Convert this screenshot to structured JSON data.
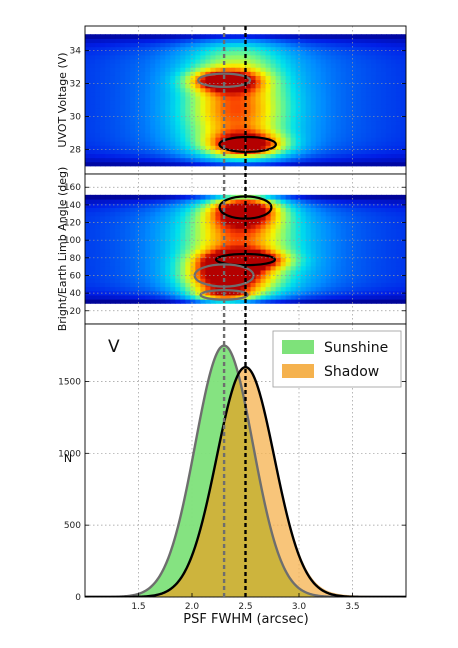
{
  "chart_data": [
    {
      "type": "heatmap",
      "panel": "top",
      "ylabel": "UVOT Voltage (V)",
      "xlim": [
        1.0,
        4.0
      ],
      "ylim": [
        26.5,
        35.5
      ],
      "yticks": [
        "28",
        "30",
        "32",
        "34"
      ],
      "ytick_values": [
        28,
        30,
        32,
        34
      ],
      "grid": true,
      "colormap": "jet",
      "blobs": [
        {
          "x": 2.3,
          "y": 32.2,
          "sx": 0.22,
          "sy": 0.45,
          "amp": 1.0
        },
        {
          "x": 2.52,
          "y": 28.3,
          "sx": 0.24,
          "sy": 0.5,
          "amp": 1.0
        },
        {
          "x": 2.4,
          "y": 30.5,
          "sx": 0.35,
          "sy": 1.6,
          "amp": 0.55
        }
      ],
      "occupied_y_range": [
        27.0,
        35.0
      ]
    },
    {
      "type": "heatmap",
      "panel": "middle",
      "ylabel": "Bright/Earth Limb Angle (deg)",
      "xlim": [
        1.0,
        4.0
      ],
      "ylim": [
        5,
        175
      ],
      "yticks": [
        "20",
        "40",
        "60",
        "80",
        "100",
        "120",
        "140",
        "160"
      ],
      "ytick_values": [
        20,
        40,
        60,
        80,
        100,
        120,
        140,
        160
      ],
      "grid": true,
      "colormap": "jet",
      "blobs": [
        {
          "x": 2.5,
          "y": 137,
          "sx": 0.22,
          "sy": 14,
          "amp": 1.0
        },
        {
          "x": 2.5,
          "y": 78,
          "sx": 0.25,
          "sy": 7,
          "amp": 0.95
        },
        {
          "x": 2.3,
          "y": 60,
          "sx": 0.25,
          "sy": 14,
          "amp": 0.85
        },
        {
          "x": 2.3,
          "y": 38,
          "sx": 0.2,
          "sy": 6,
          "amp": 0.7
        },
        {
          "x": 2.45,
          "y": 95,
          "sx": 0.4,
          "sy": 40,
          "amp": 0.5
        }
      ],
      "occupied_y_range": [
        30,
        150
      ]
    },
    {
      "type": "area",
      "panel": "bottom",
      "xlabel": "PSF FWHM (arcsec)",
      "ylabel": "N",
      "xlim": [
        1.0,
        4.0
      ],
      "ylim": [
        0,
        1900
      ],
      "xticks": [
        "1.5",
        "2.0",
        "2.5",
        "3.0",
        "3.5"
      ],
      "xtick_values": [
        1.5,
        2.0,
        2.5,
        3.0,
        3.5
      ],
      "yticks": [
        "0",
        "500",
        "1000",
        "1500"
      ],
      "ytick_values": [
        0,
        500,
        1000,
        1500
      ],
      "grid": true,
      "legend": "top-right",
      "annotation": "V",
      "series": [
        {
          "name": "Sunshine",
          "color": "#7ee27a",
          "fit_color": "#6e6e6e",
          "peak_x": 2.3,
          "peak_n": 1750,
          "sigma": 0.27
        },
        {
          "name": "Shadow",
          "color": "#f5b24e",
          "fit_color": "#000000",
          "peak_x": 2.5,
          "peak_n": 1600,
          "sigma": 0.27
        }
      ],
      "overlap_color": "#cbb33a",
      "vlines": [
        {
          "x": 2.3,
          "color": "#6e6e6e"
        },
        {
          "x": 2.5,
          "color": "#000000"
        }
      ]
    }
  ]
}
